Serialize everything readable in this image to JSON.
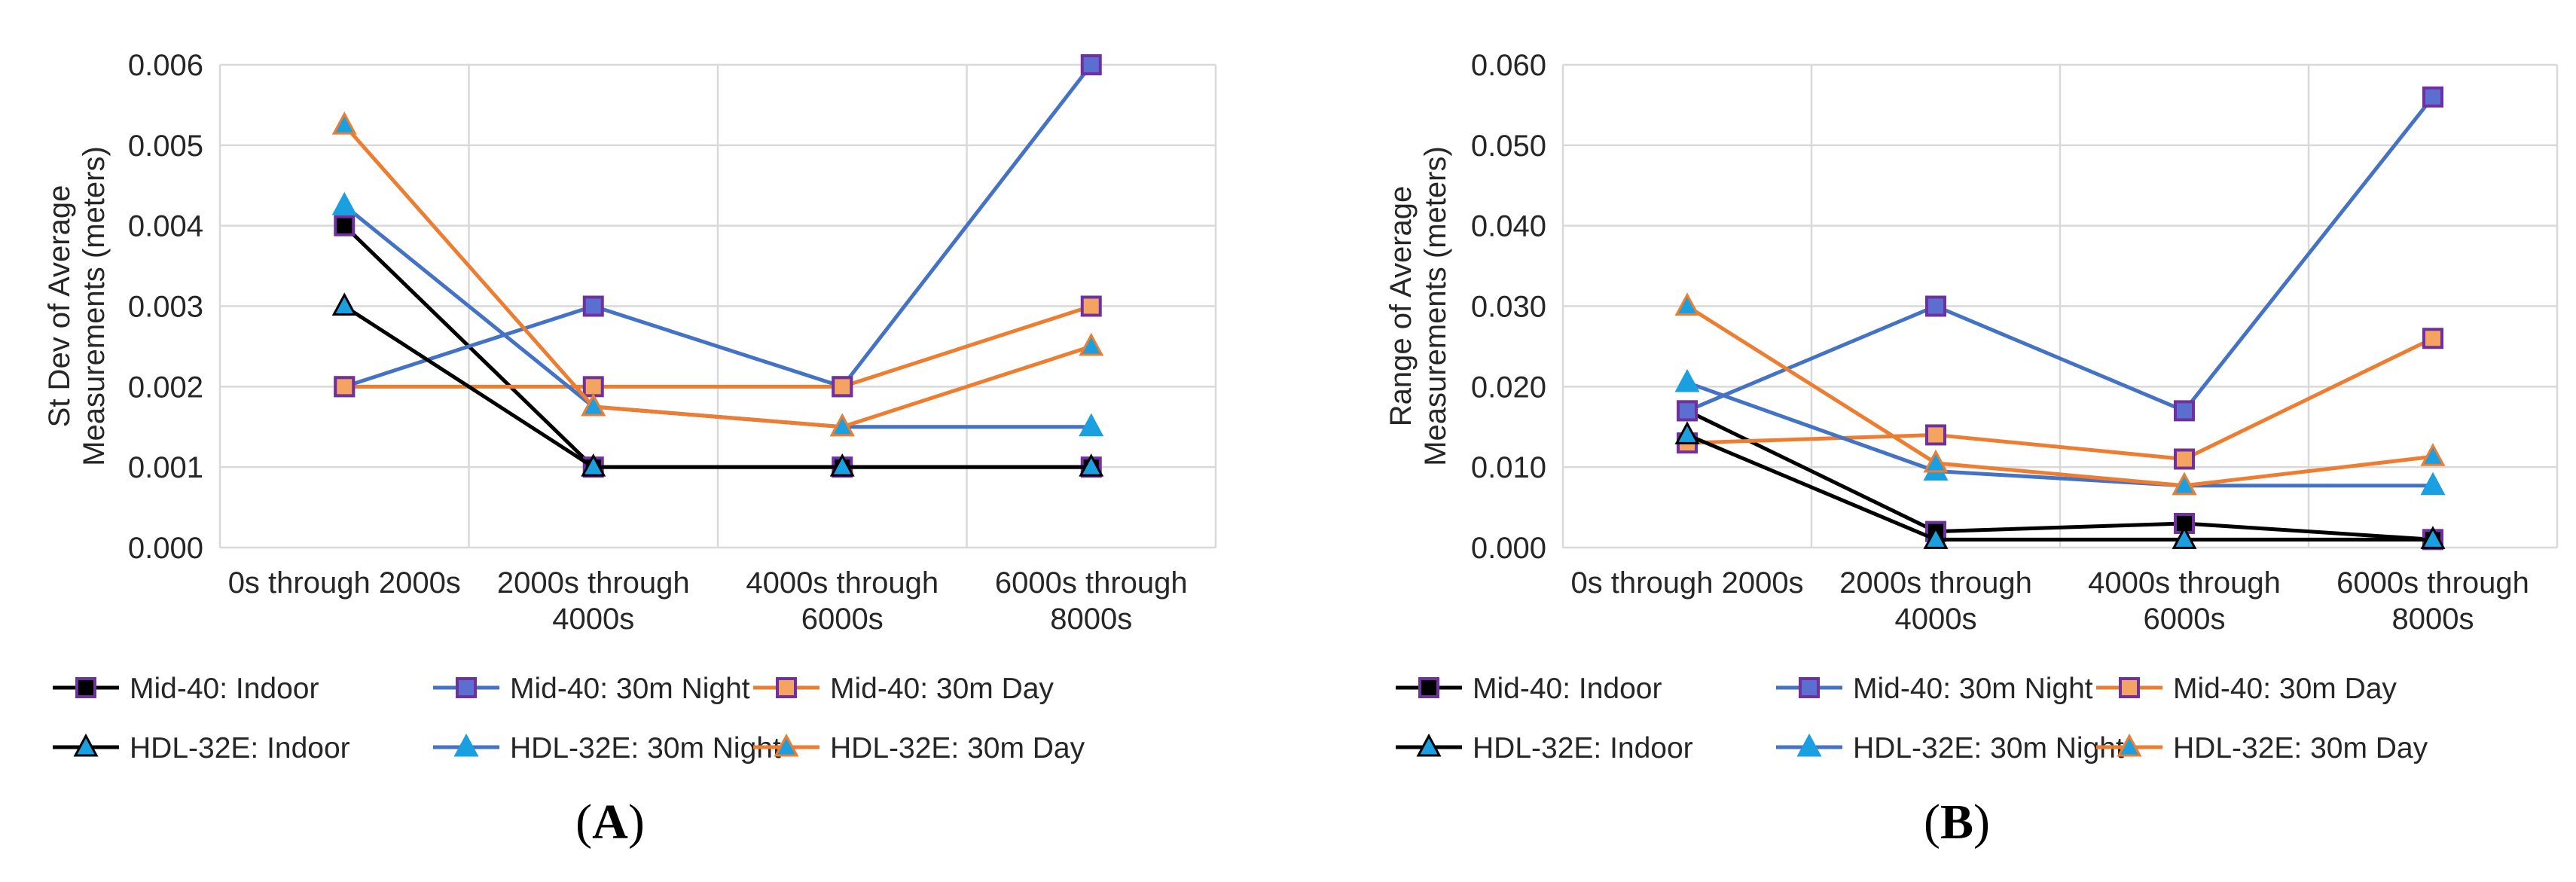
{
  "chart_data": [
    {
      "type": "line",
      "panel_label": {
        "open": "(",
        "letter": "A",
        "close": ")"
      },
      "ylabel": [
        "St Dev of Average",
        "Measurements (meters)"
      ],
      "ylim": [
        0,
        0.006
      ],
      "yticks": [
        "0.000",
        "0.001",
        "0.002",
        "0.003",
        "0.004",
        "0.005",
        "0.006"
      ],
      "categories": [
        [
          "0s through 2000s"
        ],
        [
          "2000s through",
          "4000s"
        ],
        [
          "4000s through",
          "6000s"
        ],
        [
          "6000s through",
          "8000s"
        ]
      ],
      "series": [
        {
          "name": "Mid-40: Indoor",
          "color": "#000000",
          "marker": "square",
          "fill": "#000000",
          "edge": "#7030a0",
          "values": [
            0.004,
            0.001,
            0.001,
            0.001
          ]
        },
        {
          "name": "Mid-40: 30m Night",
          "color": "#4472c4",
          "marker": "square",
          "fill": "#5b6fd1",
          "edge": "#7030a0",
          "values": [
            0.002,
            0.003,
            0.002,
            0.006
          ]
        },
        {
          "name": "Mid-40: 30m Day",
          "color": "#ed7d31",
          "marker": "square",
          "fill": "#f4a460",
          "edge": "#7030a0",
          "values": [
            0.002,
            0.002,
            0.002,
            0.003
          ]
        },
        {
          "name": "HDL-32E: Indoor",
          "color": "#000000",
          "marker": "triangle",
          "fill": "#1aa0e0",
          "edge": "#000000",
          "values": [
            0.003,
            0.001,
            0.001,
            0.001
          ]
        },
        {
          "name": "HDL-32E: 30m Night",
          "color": "#4472c4",
          "marker": "triangle",
          "fill": "#1aa0e0",
          "edge": "#1aa0e0",
          "values": [
            0.00425,
            0.00175,
            0.0015,
            0.0015
          ]
        },
        {
          "name": "HDL-32E: 30m Day",
          "color": "#ed7d31",
          "marker": "triangle",
          "fill": "#1aa0e0",
          "edge": "#ed7d31",
          "values": [
            0.00525,
            0.00175,
            0.0015,
            0.0025
          ]
        }
      ]
    },
    {
      "type": "line",
      "panel_label": {
        "open": "(",
        "letter": "B",
        "close": ")"
      },
      "ylabel": [
        "Range of Average",
        "Measurements (meters)"
      ],
      "ylim": [
        0,
        0.06
      ],
      "yticks": [
        "0.000",
        "0.010",
        "0.020",
        "0.030",
        "0.040",
        "0.050",
        "0.060"
      ],
      "categories": [
        [
          "0s through 2000s"
        ],
        [
          "2000s through",
          "4000s"
        ],
        [
          "4000s through",
          "6000s"
        ],
        [
          "6000s through",
          "8000s"
        ]
      ],
      "series": [
        {
          "name": "Mid-40: Indoor",
          "color": "#000000",
          "marker": "square",
          "fill": "#000000",
          "edge": "#7030a0",
          "values": [
            0.017,
            0.002,
            0.003,
            0.001
          ]
        },
        {
          "name": "Mid-40: 30m Night",
          "color": "#4472c4",
          "marker": "square",
          "fill": "#5b6fd1",
          "edge": "#7030a0",
          "values": [
            0.017,
            0.03,
            0.017,
            0.056
          ]
        },
        {
          "name": "Mid-40: 30m Day",
          "color": "#ed7d31",
          "marker": "square",
          "fill": "#f4a460",
          "edge": "#7030a0",
          "values": [
            0.013,
            0.014,
            0.011,
            0.026
          ]
        },
        {
          "name": "HDL-32E: Indoor",
          "color": "#000000",
          "marker": "triangle",
          "fill": "#1aa0e0",
          "edge": "#000000",
          "values": [
            0.014,
            0.001,
            0.001,
            0.001
          ]
        },
        {
          "name": "HDL-32E: 30m Night",
          "color": "#4472c4",
          "marker": "triangle",
          "fill": "#1aa0e0",
          "edge": "#1aa0e0",
          "values": [
            0.0205,
            0.0095,
            0.0077,
            0.0077
          ]
        },
        {
          "name": "HDL-32E: 30m Day",
          "color": "#ed7d31",
          "marker": "triangle",
          "fill": "#1aa0e0",
          "edge": "#ed7d31",
          "values": [
            0.03,
            0.0105,
            0.0077,
            0.0113
          ]
        }
      ]
    }
  ]
}
